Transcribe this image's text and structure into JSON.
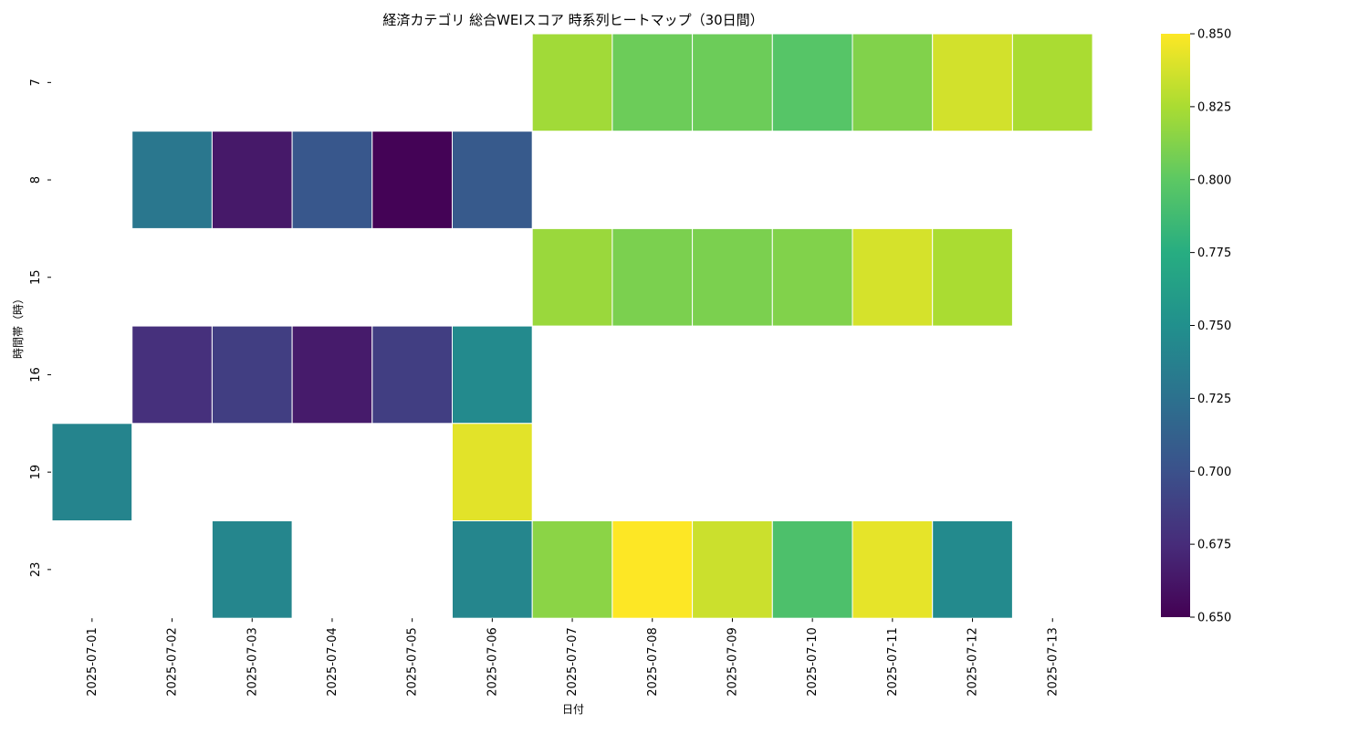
{
  "chart_data": {
    "type": "heatmap",
    "title": "経済カテゴリ 総合WEIスコア 時系列ヒートマップ（30日間）",
    "xlabel": "日付",
    "ylabel": "時間帯（時）",
    "colormap": "viridis",
    "color_range": [
      0.65,
      0.85
    ],
    "colorbar_ticks": [
      "0.650",
      "0.675",
      "0.700",
      "0.725",
      "0.750",
      "0.775",
      "0.800",
      "0.825",
      "0.850"
    ],
    "x": [
      "2025-07-01",
      "2025-07-02",
      "2025-07-03",
      "2025-07-04",
      "2025-07-05",
      "2025-07-06",
      "2025-07-07",
      "2025-07-08",
      "2025-07-09",
      "2025-07-10",
      "2025-07-11",
      "2025-07-12",
      "2025-07-13"
    ],
    "y": [
      "7",
      "8",
      "15",
      "16",
      "19",
      "23"
    ],
    "values": [
      [
        null,
        null,
        null,
        null,
        null,
        null,
        0.822,
        0.805,
        0.805,
        0.797,
        0.812,
        0.837,
        0.825
      ],
      [
        null,
        0.73,
        0.664,
        0.705,
        0.651,
        0.707,
        null,
        null,
        null,
        null,
        null,
        null,
        null
      ],
      [
        null,
        null,
        null,
        null,
        null,
        null,
        0.82,
        0.81,
        0.81,
        0.812,
        0.838,
        0.825,
        null
      ],
      [
        null,
        0.678,
        0.687,
        0.665,
        0.687,
        0.745,
        null,
        null,
        null,
        null,
        null,
        null,
        null
      ],
      [
        0.74,
        null,
        null,
        null,
        null,
        0.842,
        null,
        null,
        null,
        null,
        null,
        null,
        null
      ],
      [
        null,
        null,
        0.742,
        null,
        null,
        0.742,
        0.815,
        0.85,
        0.835,
        0.793,
        0.843,
        0.745,
        null
      ]
    ]
  }
}
